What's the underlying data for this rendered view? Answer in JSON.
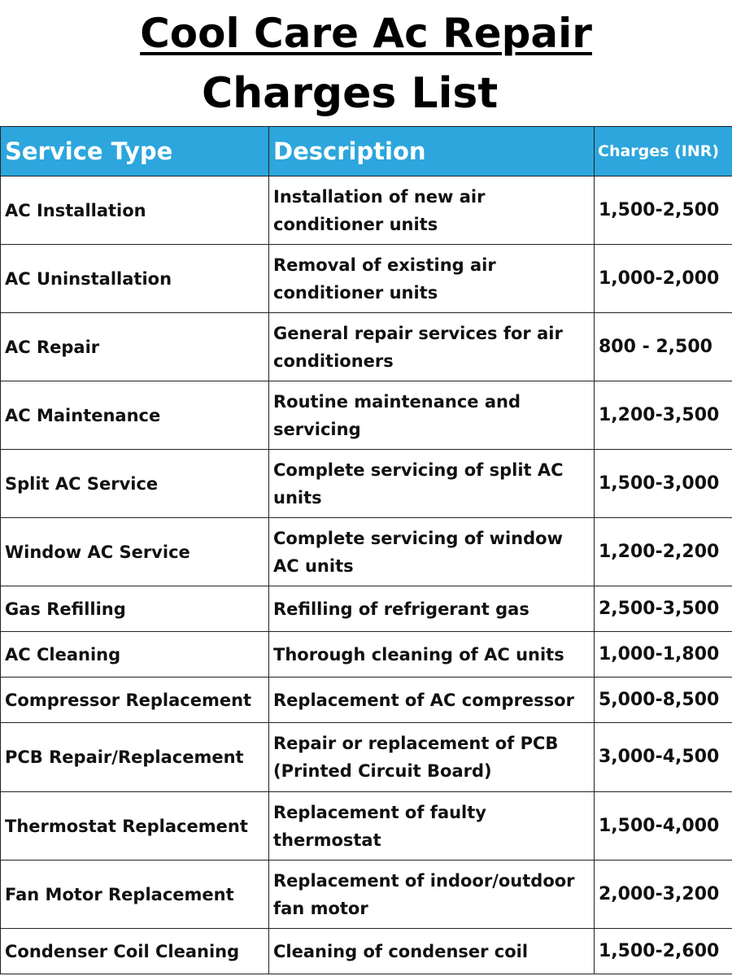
{
  "title": "Cool Care Ac Repair",
  "subtitle": "Charges List",
  "table": {
    "headers": [
      "Service Type",
      "Description",
      "Charges (INR)"
    ],
    "rows": [
      {
        "service": "AC Installation",
        "description": "Installation of new air conditioner units",
        "charges": "1,500-2,500"
      },
      {
        "service": "AC Uninstallation",
        "description": "Removal of existing air conditioner units",
        "charges": "1,000-2,000"
      },
      {
        "service": "AC Repair",
        "description": "General repair services for air conditioners",
        "charges": "800 - 2,500"
      },
      {
        "service": "AC Maintenance",
        "description": "Routine maintenance and servicing",
        "charges": "1,200-3,500"
      },
      {
        "service": "Split AC Service",
        "description": "Complete servicing of split AC units",
        "charges": "1,500-3,000"
      },
      {
        "service": "Window AC Service",
        "description": "Complete servicing of window AC units",
        "charges": "1,200-2,200"
      },
      {
        "service": "Gas Refilling",
        "description": "Refilling of refrigerant gas",
        "charges": "2,500-3,500"
      },
      {
        "service": "AC Cleaning",
        "description": "Thorough cleaning of AC units",
        "charges": "1,000-1,800"
      },
      {
        "service": "Compressor Replacement",
        "description": "Replacement of AC compressor",
        "charges": "5,000-8,500"
      },
      {
        "service": "PCB Repair/Replacement",
        "description": "Repair or replacement of PCB (Printed Circuit Board)",
        "charges": "3,000-4,500"
      },
      {
        "service": "Thermostat Replacement",
        "description": "Replacement of faulty thermostat",
        "charges": "1,500-4,000"
      },
      {
        "service": "Fan Motor Replacement",
        "description": "Replacement of indoor/outdoor fan motor",
        "charges": "2,000-3,200"
      },
      {
        "service": "Condenser Coil Cleaning",
        "description": "Cleaning of condenser coil",
        "charges": "1,500-2,600"
      }
    ]
  },
  "colors": {
    "header_bg": "#2ca6dc",
    "header_text": "#ffffff"
  }
}
